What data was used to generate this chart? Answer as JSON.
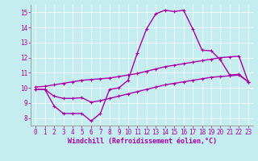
{
  "xlabel": "Windchill (Refroidissement éolien,°C)",
  "background_color": "#c5ecee",
  "line_color": "#aa00aa",
  "grid_color": "#ffffff",
  "xlim": [
    -0.5,
    23.5
  ],
  "ylim": [
    7.5,
    15.5
  ],
  "xticks": [
    0,
    1,
    2,
    3,
    4,
    5,
    6,
    7,
    8,
    9,
    10,
    11,
    12,
    13,
    14,
    15,
    16,
    17,
    18,
    19,
    20,
    21,
    22,
    23
  ],
  "yticks": [
    8,
    9,
    10,
    11,
    12,
    13,
    14,
    15
  ],
  "line1_x": [
    0,
    1,
    2,
    3,
    4,
    5,
    6,
    7,
    8,
    9,
    10,
    11,
    12,
    13,
    14,
    15,
    16,
    17,
    18,
    19,
    20,
    21,
    22,
    23
  ],
  "line1_y": [
    9.9,
    9.9,
    8.8,
    8.3,
    8.3,
    8.3,
    7.8,
    8.3,
    9.9,
    10.0,
    10.5,
    12.3,
    13.9,
    14.9,
    15.15,
    15.05,
    15.15,
    13.9,
    12.5,
    12.45,
    11.85,
    10.85,
    10.9,
    10.4
  ],
  "line2_x": [
    0,
    1,
    2,
    3,
    4,
    5,
    6,
    7,
    8,
    9,
    10,
    11,
    12,
    13,
    14,
    15,
    16,
    17,
    18,
    19,
    20,
    21,
    22,
    23
  ],
  "line2_y": [
    10.05,
    10.1,
    10.2,
    10.3,
    10.4,
    10.5,
    10.55,
    10.6,
    10.65,
    10.75,
    10.85,
    10.95,
    11.1,
    11.25,
    11.4,
    11.5,
    11.6,
    11.7,
    11.8,
    11.9,
    12.0,
    12.05,
    12.1,
    10.4
  ],
  "line3_x": [
    0,
    1,
    2,
    3,
    4,
    5,
    6,
    7,
    8,
    9,
    10,
    11,
    12,
    13,
    14,
    15,
    16,
    17,
    18,
    19,
    20,
    21,
    22,
    23
  ],
  "line3_y": [
    9.9,
    9.9,
    9.45,
    9.3,
    9.3,
    9.35,
    9.05,
    9.15,
    9.3,
    9.45,
    9.6,
    9.75,
    9.9,
    10.05,
    10.2,
    10.3,
    10.4,
    10.5,
    10.6,
    10.7,
    10.75,
    10.8,
    10.85,
    10.4
  ],
  "linewidth": 1.0,
  "markersize": 3.5,
  "tick_fontsize": 5.5,
  "label_fontsize": 6.0
}
